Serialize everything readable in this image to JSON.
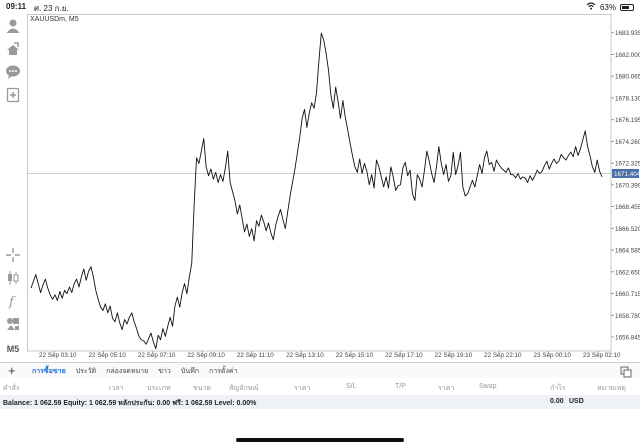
{
  "status": {
    "time": "09:11",
    "date": "ศ. 23 ก.ย.",
    "battery": "63%"
  },
  "toolbar": {
    "icons": [
      "user-icon",
      "accounts-icon",
      "chat-icon",
      "new-order-icon",
      "crosshair-icon",
      "candlestick-icon",
      "indicator-icon",
      "objects-icon"
    ],
    "timeframe": "M5"
  },
  "chart": {
    "symbol_label": "XAUUSDm, M5",
    "current_price": "1671.404",
    "line_color": "#111111",
    "marker_color": "#4a6fa5"
  },
  "chart_data": {
    "type": "line",
    "title": "XAUUSDm, M5",
    "xlabel": "",
    "ylabel": "",
    "ylim": [
      1655.6,
      1685.6
    ],
    "y_ticks": [
      "1683.935",
      "1682.000",
      "1680.065",
      "1678.130",
      "1676.195",
      "1674.260",
      "1672.325",
      "1670.390",
      "1668.455",
      "1666.520",
      "1664.585",
      "1662.650",
      "1660.715",
      "1658.780",
      "1656.845"
    ],
    "x_ticks": [
      "22 Sep 03:10",
      "22 Sep 05:10",
      "22 Sep 07:10",
      "22 Sep 09:10",
      "22 Sep 11:10",
      "22 Sep 13:10",
      "22 Sep 15:10",
      "22 Sep 17:10",
      "22 Sep 19:10",
      "22 Sep 22:10",
      "23 Sep 00:10",
      "23 Sep 02:10"
    ],
    "current_price": 1671.404,
    "grid": false,
    "values": [
      1661.2,
      1661.8,
      1662.4,
      1661.6,
      1660.8,
      1661.5,
      1662.0,
      1661.2,
      1660.6,
      1660.2,
      1660.6,
      1660.1,
      1660.9,
      1660.3,
      1661.0,
      1660.7,
      1661.3,
      1660.8,
      1661.6,
      1662.0,
      1661.3,
      1662.2,
      1662.9,
      1661.9,
      1662.7,
      1663.1,
      1662.2,
      1661.0,
      1660.2,
      1659.5,
      1659.2,
      1659.8,
      1659.0,
      1659.6,
      1658.5,
      1658.2,
      1659.0,
      1658.1,
      1657.5,
      1658.4,
      1658.0,
      1658.6,
      1659.0,
      1658.2,
      1657.6,
      1656.9,
      1656.6,
      1656.5,
      1656.2,
      1656.7,
      1657.2,
      1656.4,
      1655.8,
      1657.0,
      1656.6,
      1657.6,
      1656.9,
      1657.8,
      1658.6,
      1657.8,
      1659.6,
      1660.4,
      1659.5,
      1660.8,
      1661.6,
      1660.7,
      1662.2,
      1663.4,
      1668.6,
      1672.8,
      1672.3,
      1673.4,
      1674.5,
      1672.0,
      1671.2,
      1671.8,
      1670.9,
      1671.5,
      1670.6,
      1671.3,
      1670.7,
      1671.9,
      1673.4,
      1670.6,
      1669.8,
      1669.0,
      1667.8,
      1668.6,
      1667.4,
      1666.2,
      1666.9,
      1665.8,
      1666.5,
      1665.4,
      1667.2,
      1666.7,
      1667.7,
      1667.1,
      1666.3,
      1667.0,
      1666.1,
      1665.5,
      1666.8,
      1667.6,
      1668.2,
      1667.3,
      1666.5,
      1668.0,
      1669.4,
      1670.6,
      1671.8,
      1673.2,
      1674.6,
      1676.3,
      1677.1,
      1675.5,
      1676.8,
      1677.7,
      1677.2,
      1678.6,
      1681.4,
      1683.9,
      1683.3,
      1682.1,
      1680.6,
      1678.4,
      1677.2,
      1679.1,
      1677.8,
      1676.3,
      1677.9,
      1676.4,
      1675.3,
      1674.1,
      1673.0,
      1672.0,
      1671.5,
      1672.7,
      1671.4,
      1672.3,
      1671.6,
      1670.4,
      1671.3,
      1670.1,
      1672.6,
      1672.0,
      1671.1,
      1670.2,
      1671.1,
      1670.1,
      1672.0,
      1671.1,
      1669.9,
      1670.3,
      1670.4,
      1671.9,
      1672.4,
      1671.2,
      1671.7,
      1669.6,
      1669.0,
      1671.3,
      1670.9,
      1670.2,
      1671.7,
      1673.4,
      1672.5,
      1671.4,
      1670.6,
      1672.0,
      1673.8,
      1672.3,
      1671.3,
      1672.2,
      1670.7,
      1671.2,
      1673.3,
      1671.3,
      1672.1,
      1673.3,
      1670.2,
      1669.4,
      1669.6,
      1670.2,
      1670.8,
      1670.2,
      1671.2,
      1672.2,
      1671.4,
      1672.8,
      1673.4,
      1672.2,
      1672.4,
      1671.6,
      1672.6,
      1672.2,
      1671.9,
      1671.7,
      1671.5,
      1671.9,
      1671.3,
      1671.3,
      1671.0,
      1671.4,
      1670.9,
      1671.1,
      1671.0,
      1670.6,
      1671.2,
      1670.8,
      1671.2,
      1671.7,
      1671.4,
      1671.6,
      1672.1,
      1672.5,
      1671.8,
      1672.3,
      1672.7,
      1672.3,
      1672.5,
      1673.1,
      1672.8,
      1672.6,
      1673.0,
      1673.3,
      1672.9,
      1673.8,
      1673.0,
      1673.6,
      1674.4,
      1675.2,
      1673.8,
      1673.0,
      1672.0,
      1671.5,
      1672.6,
      1671.6,
      1671.1
    ]
  },
  "tabs": {
    "items": [
      "การซื้อขาย",
      "ประวัติ",
      "กล่องจดหมาย",
      "ข่าว",
      "บันทึก",
      "การตั้งค่า"
    ],
    "active": 0
  },
  "columns": [
    "คำสั่ง",
    "เวลา",
    "ประเภท",
    "ขนาด",
    "สัญลักษณ์",
    "ราคา",
    "S/L",
    "T/P",
    "ราคา",
    "Swap",
    "กำไร",
    "หมายเหตุ"
  ],
  "balance": {
    "text": "Balance: 1 062.59 Equity: 1 062.59 หลักประกัน: 0.00 ฟรี: 1 062.59 Level: 0.00%",
    "profit": "0.00",
    "currency": "USD"
  }
}
